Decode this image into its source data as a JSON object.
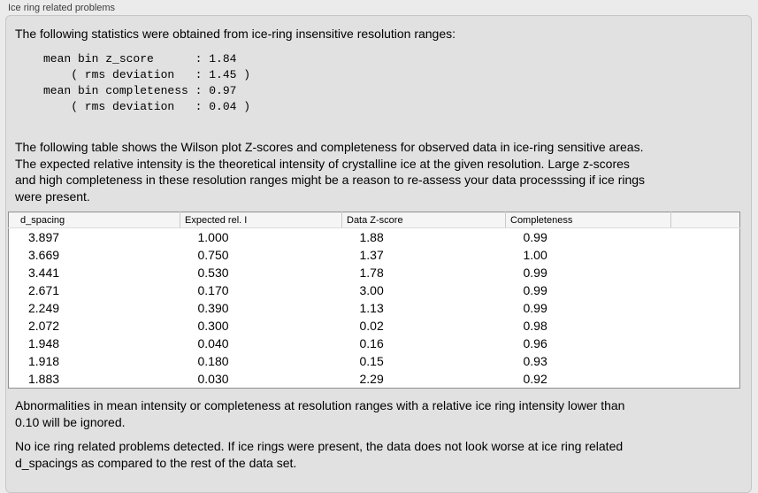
{
  "panel": {
    "title": "Ice ring related problems"
  },
  "intro": {
    "text": "The following statistics were obtained from ice-ring insensitive resolution ranges:"
  },
  "stats": {
    "lines": [
      "mean bin z_score      : 1.84",
      "    ( rms deviation   : 1.45 )",
      "mean bin completeness : 0.97",
      "    ( rms deviation   : 0.04 )"
    ],
    "mean_bin_z_score": 1.84,
    "z_score_rms_deviation": 1.45,
    "mean_bin_completeness": 0.97,
    "completeness_rms_deviation": 0.04
  },
  "description": {
    "lines": [
      "The following table shows the Wilson plot Z-scores and completeness for observed data in ice-ring sensitive areas.",
      "The expected relative intensity is the theoretical intensity of crystalline ice at the given resolution. Large z-scores",
      "and high completeness in these resolution ranges might be a reason to re-assess your data processsing if ice rings",
      "were present."
    ]
  },
  "table": {
    "columns": [
      "d_spacing",
      "Expected rel. I",
      "Data Z-score",
      "Completeness",
      ""
    ],
    "rows": [
      [
        "3.897",
        "1.000",
        "1.88",
        "0.99"
      ],
      [
        "3.669",
        "0.750",
        "1.37",
        "1.00"
      ],
      [
        "3.441",
        "0.530",
        "1.78",
        "0.99"
      ],
      [
        "2.671",
        "0.170",
        "3.00",
        "0.99"
      ],
      [
        "2.249",
        "0.390",
        "1.13",
        "0.99"
      ],
      [
        "2.072",
        "0.300",
        "0.02",
        "0.98"
      ],
      [
        "1.948",
        "0.040",
        "0.16",
        "0.96"
      ],
      [
        "1.918",
        "0.180",
        "0.15",
        "0.93"
      ],
      [
        "1.883",
        "0.030",
        "2.29",
        "0.92"
      ]
    ]
  },
  "note": {
    "lines": [
      "Abnormalities in mean intensity or completeness at resolution ranges with a relative ice ring intensity lower than",
      "0.10 will be ignored."
    ]
  },
  "conclusion": {
    "lines": [
      "No ice ring related problems detected. If ice rings were present, the data does not look worse at ice ring related",
      "d_spacings as compared to the rest of the data set."
    ]
  },
  "colors": {
    "window_background": "#ebebeb",
    "groupbox_background": "#e1e1e1",
    "groupbox_border": "#c6c6c6",
    "table_background": "#ffffff",
    "table_border": "#8f8f8f",
    "table_header_background": "#f5f5f5",
    "text": "#000000"
  }
}
